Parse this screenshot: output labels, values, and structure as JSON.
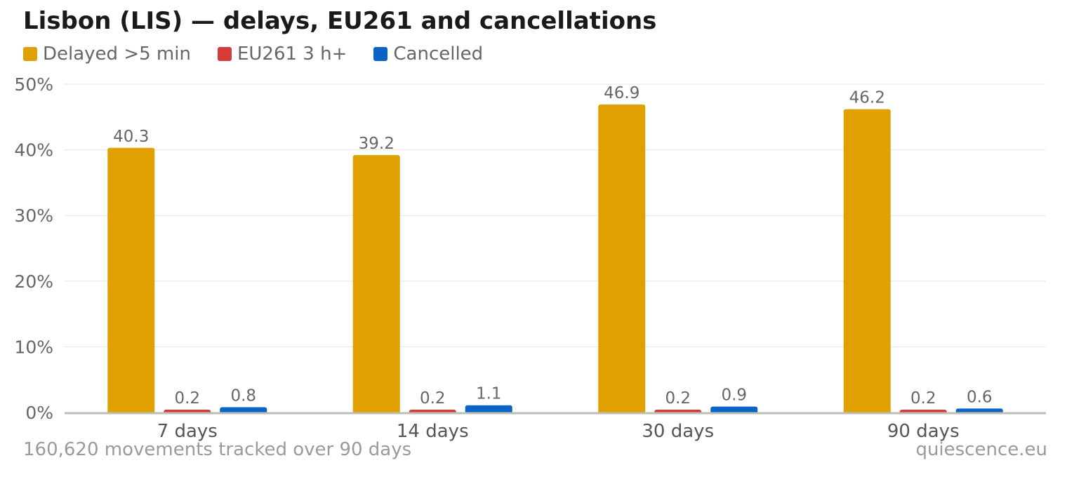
{
  "chart_data": {
    "type": "bar",
    "title": "Lisbon (LIS) — delays, EU261 and cancellations",
    "categories": [
      "7 days",
      "14 days",
      "30 days",
      "90 days"
    ],
    "series": [
      {
        "name": "Delayed >5 min",
        "color": "#E0A000",
        "values": [
          40.3,
          39.2,
          46.9,
          46.2
        ],
        "labels": [
          "40.3",
          "39.2",
          "46.9",
          "46.2"
        ]
      },
      {
        "name": "EU261 3 h+",
        "color": "#D23C3C",
        "values": [
          0.2,
          0.2,
          0.2,
          0.2
        ],
        "labels": [
          "0.2",
          "0.2",
          "0.2",
          "0.2"
        ]
      },
      {
        "name": "Cancelled",
        "color": "#0A64C8",
        "values": [
          0.8,
          1.1,
          0.9,
          0.6
        ],
        "labels": [
          "0.8",
          "1.1",
          "0.9",
          "0.6"
        ]
      }
    ],
    "yticks": [
      0,
      10,
      20,
      30,
      40,
      50
    ],
    "ytick_labels": [
      "0%",
      "10%",
      "20%",
      "30%",
      "40%",
      "50%"
    ],
    "ylim": [
      0,
      50
    ],
    "legend": "top-left",
    "grid": true
  },
  "footer": {
    "note": "160,620 movements tracked over 90 days",
    "source": "quiescence.eu"
  }
}
